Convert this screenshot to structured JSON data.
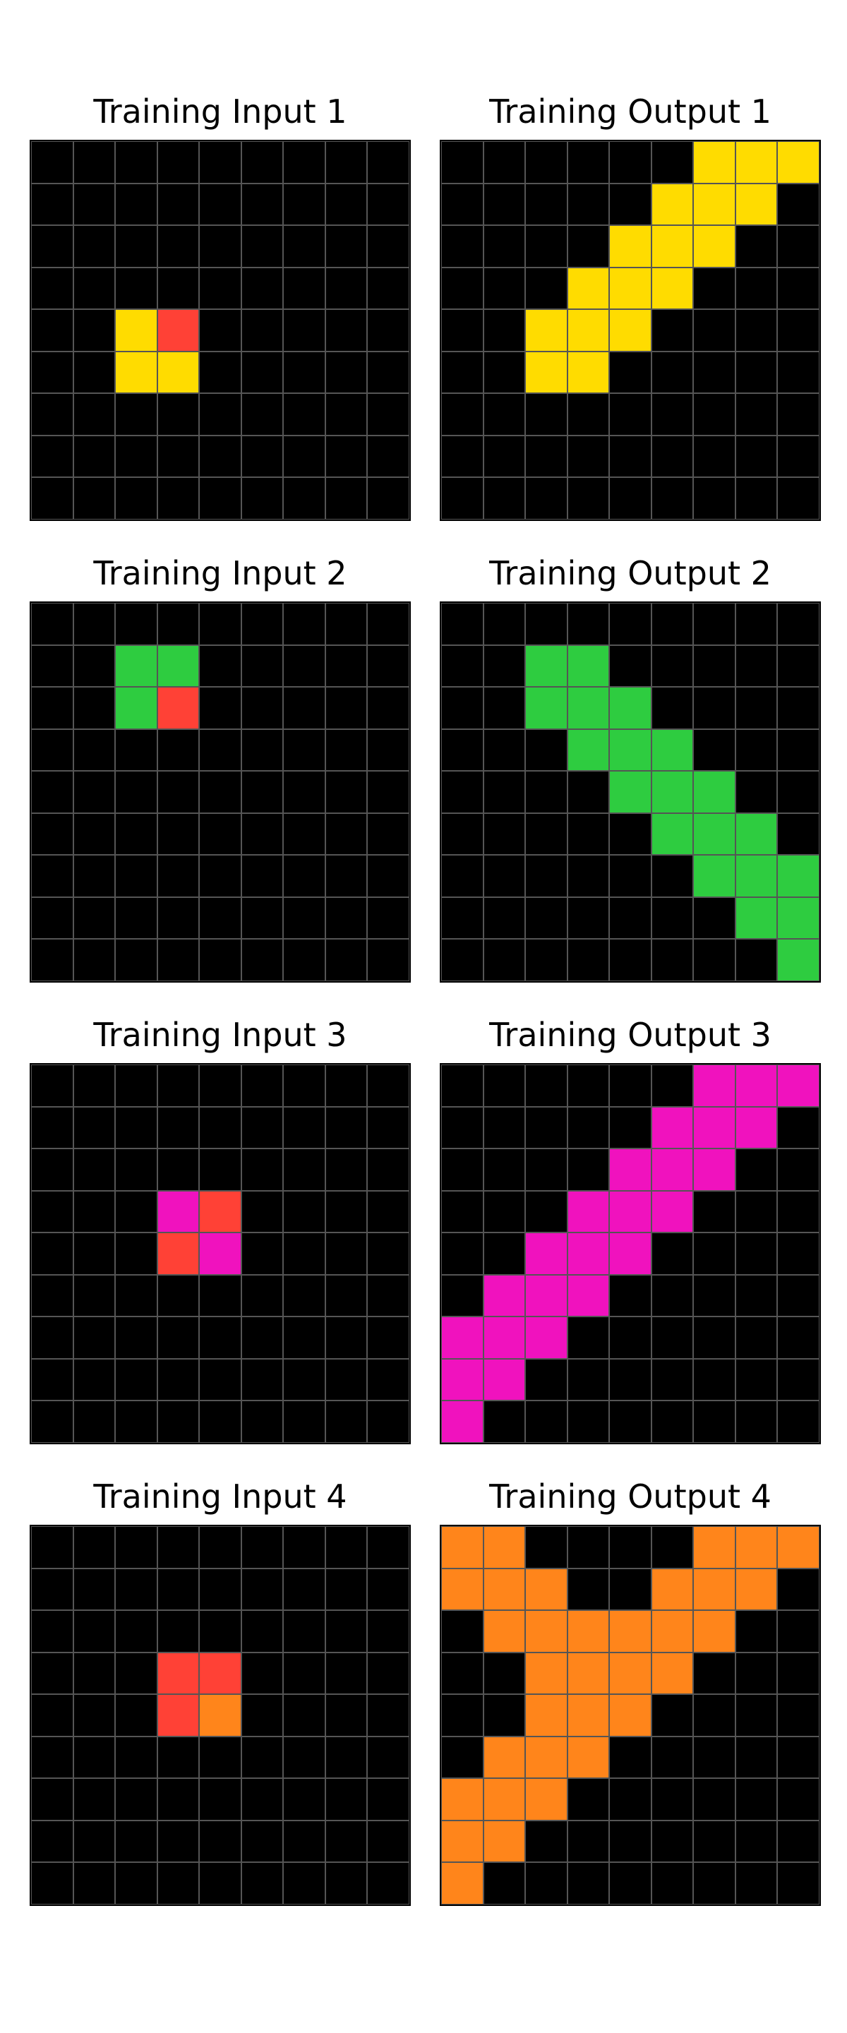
{
  "palette": {
    "0": "#000000",
    "2": "#FF4136",
    "4": "#FFDC00",
    "3": "#2ECC40",
    "6": "#F012BE",
    "7": "#FF851B"
  },
  "pairs": [
    {
      "input": {
        "title": "Training Input 1",
        "grid": [
          [
            0,
            0,
            0,
            0,
            0,
            0,
            0,
            0,
            0
          ],
          [
            0,
            0,
            0,
            0,
            0,
            0,
            0,
            0,
            0
          ],
          [
            0,
            0,
            0,
            0,
            0,
            0,
            0,
            0,
            0
          ],
          [
            0,
            0,
            0,
            0,
            0,
            0,
            0,
            0,
            0
          ],
          [
            0,
            0,
            4,
            2,
            0,
            0,
            0,
            0,
            0
          ],
          [
            0,
            0,
            4,
            4,
            0,
            0,
            0,
            0,
            0
          ],
          [
            0,
            0,
            0,
            0,
            0,
            0,
            0,
            0,
            0
          ],
          [
            0,
            0,
            0,
            0,
            0,
            0,
            0,
            0,
            0
          ],
          [
            0,
            0,
            0,
            0,
            0,
            0,
            0,
            0,
            0
          ]
        ]
      },
      "output": {
        "title": "Training Output 1",
        "grid": [
          [
            0,
            0,
            0,
            0,
            0,
            0,
            4,
            4,
            4
          ],
          [
            0,
            0,
            0,
            0,
            0,
            4,
            4,
            4,
            0
          ],
          [
            0,
            0,
            0,
            0,
            4,
            4,
            4,
            0,
            0
          ],
          [
            0,
            0,
            0,
            4,
            4,
            4,
            0,
            0,
            0
          ],
          [
            0,
            0,
            4,
            4,
            4,
            0,
            0,
            0,
            0
          ],
          [
            0,
            0,
            4,
            4,
            0,
            0,
            0,
            0,
            0
          ],
          [
            0,
            0,
            0,
            0,
            0,
            0,
            0,
            0,
            0
          ],
          [
            0,
            0,
            0,
            0,
            0,
            0,
            0,
            0,
            0
          ],
          [
            0,
            0,
            0,
            0,
            0,
            0,
            0,
            0,
            0
          ]
        ]
      }
    },
    {
      "input": {
        "title": "Training Input 2",
        "grid": [
          [
            0,
            0,
            0,
            0,
            0,
            0,
            0,
            0,
            0
          ],
          [
            0,
            0,
            3,
            3,
            0,
            0,
            0,
            0,
            0
          ],
          [
            0,
            0,
            3,
            2,
            0,
            0,
            0,
            0,
            0
          ],
          [
            0,
            0,
            0,
            0,
            0,
            0,
            0,
            0,
            0
          ],
          [
            0,
            0,
            0,
            0,
            0,
            0,
            0,
            0,
            0
          ],
          [
            0,
            0,
            0,
            0,
            0,
            0,
            0,
            0,
            0
          ],
          [
            0,
            0,
            0,
            0,
            0,
            0,
            0,
            0,
            0
          ],
          [
            0,
            0,
            0,
            0,
            0,
            0,
            0,
            0,
            0
          ],
          [
            0,
            0,
            0,
            0,
            0,
            0,
            0,
            0,
            0
          ]
        ]
      },
      "output": {
        "title": "Training Output 2",
        "grid": [
          [
            0,
            0,
            0,
            0,
            0,
            0,
            0,
            0,
            0
          ],
          [
            0,
            0,
            3,
            3,
            0,
            0,
            0,
            0,
            0
          ],
          [
            0,
            0,
            3,
            3,
            3,
            0,
            0,
            0,
            0
          ],
          [
            0,
            0,
            0,
            3,
            3,
            3,
            0,
            0,
            0
          ],
          [
            0,
            0,
            0,
            0,
            3,
            3,
            3,
            0,
            0
          ],
          [
            0,
            0,
            0,
            0,
            0,
            3,
            3,
            3,
            0
          ],
          [
            0,
            0,
            0,
            0,
            0,
            0,
            3,
            3,
            3
          ],
          [
            0,
            0,
            0,
            0,
            0,
            0,
            0,
            3,
            3
          ],
          [
            0,
            0,
            0,
            0,
            0,
            0,
            0,
            0,
            3
          ]
        ]
      }
    },
    {
      "input": {
        "title": "Training Input 3",
        "grid": [
          [
            0,
            0,
            0,
            0,
            0,
            0,
            0,
            0,
            0
          ],
          [
            0,
            0,
            0,
            0,
            0,
            0,
            0,
            0,
            0
          ],
          [
            0,
            0,
            0,
            0,
            0,
            0,
            0,
            0,
            0
          ],
          [
            0,
            0,
            0,
            6,
            2,
            0,
            0,
            0,
            0
          ],
          [
            0,
            0,
            0,
            2,
            6,
            0,
            0,
            0,
            0
          ],
          [
            0,
            0,
            0,
            0,
            0,
            0,
            0,
            0,
            0
          ],
          [
            0,
            0,
            0,
            0,
            0,
            0,
            0,
            0,
            0
          ],
          [
            0,
            0,
            0,
            0,
            0,
            0,
            0,
            0,
            0
          ],
          [
            0,
            0,
            0,
            0,
            0,
            0,
            0,
            0,
            0
          ]
        ]
      },
      "output": {
        "title": "Training Output 3",
        "grid": [
          [
            0,
            0,
            0,
            0,
            0,
            0,
            6,
            6,
            6
          ],
          [
            0,
            0,
            0,
            0,
            0,
            6,
            6,
            6,
            0
          ],
          [
            0,
            0,
            0,
            0,
            6,
            6,
            6,
            0,
            0
          ],
          [
            0,
            0,
            0,
            6,
            6,
            6,
            0,
            0,
            0
          ],
          [
            0,
            0,
            6,
            6,
            6,
            0,
            0,
            0,
            0
          ],
          [
            0,
            6,
            6,
            6,
            0,
            0,
            0,
            0,
            0
          ],
          [
            6,
            6,
            6,
            0,
            0,
            0,
            0,
            0,
            0
          ],
          [
            6,
            6,
            0,
            0,
            0,
            0,
            0,
            0,
            0
          ],
          [
            6,
            0,
            0,
            0,
            0,
            0,
            0,
            0,
            0
          ]
        ]
      }
    },
    {
      "input": {
        "title": "Training Input 4",
        "grid": [
          [
            0,
            0,
            0,
            0,
            0,
            0,
            0,
            0,
            0
          ],
          [
            0,
            0,
            0,
            0,
            0,
            0,
            0,
            0,
            0
          ],
          [
            0,
            0,
            0,
            0,
            0,
            0,
            0,
            0,
            0
          ],
          [
            0,
            0,
            0,
            2,
            2,
            0,
            0,
            0,
            0
          ],
          [
            0,
            0,
            0,
            2,
            7,
            0,
            0,
            0,
            0
          ],
          [
            0,
            0,
            0,
            0,
            0,
            0,
            0,
            0,
            0
          ],
          [
            0,
            0,
            0,
            0,
            0,
            0,
            0,
            0,
            0
          ],
          [
            0,
            0,
            0,
            0,
            0,
            0,
            0,
            0,
            0
          ],
          [
            0,
            0,
            0,
            0,
            0,
            0,
            0,
            0,
            0
          ]
        ]
      },
      "output": {
        "title": "Training Output 4",
        "grid": [
          [
            7,
            7,
            0,
            0,
            0,
            0,
            7,
            7,
            7
          ],
          [
            7,
            7,
            7,
            0,
            0,
            7,
            7,
            7,
            0
          ],
          [
            0,
            7,
            7,
            7,
            7,
            7,
            7,
            0,
            0
          ],
          [
            0,
            0,
            7,
            7,
            7,
            7,
            0,
            0,
            0
          ],
          [
            0,
            0,
            7,
            7,
            7,
            0,
            0,
            0,
            0
          ],
          [
            0,
            7,
            7,
            7,
            0,
            0,
            0,
            0,
            0
          ],
          [
            7,
            7,
            7,
            0,
            0,
            0,
            0,
            0,
            0
          ],
          [
            7,
            7,
            0,
            0,
            0,
            0,
            0,
            0,
            0
          ],
          [
            7,
            0,
            0,
            0,
            0,
            0,
            0,
            0,
            0
          ]
        ]
      }
    }
  ]
}
